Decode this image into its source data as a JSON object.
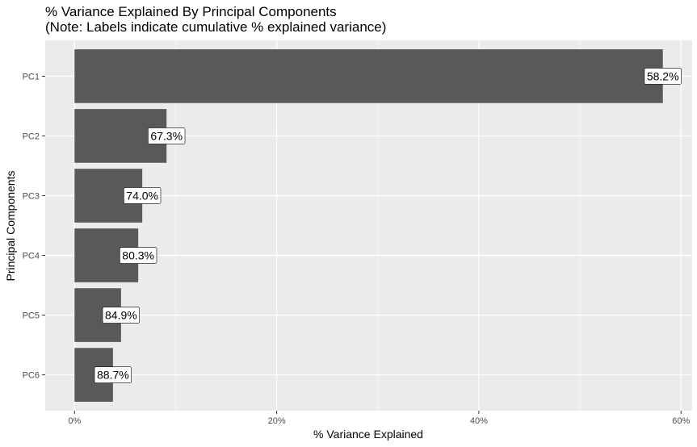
{
  "chart_data": {
    "type": "bar",
    "orientation": "horizontal",
    "title": "% Variance Explained By Principal Components",
    "subtitle": "(Note: Labels indicate cumulative % explained variance)",
    "xlabel": "% Variance Explained",
    "ylabel": "Principal Components",
    "categories": [
      "PC1",
      "PC2",
      "PC3",
      "PC4",
      "PC5",
      "PC6"
    ],
    "values": [
      58.2,
      9.1,
      6.7,
      6.3,
      4.6,
      3.8
    ],
    "data_labels": [
      "58.2%",
      "67.3%",
      "74.0%",
      "80.3%",
      "84.9%",
      "88.7%"
    ],
    "xlim": [
      -2.9,
      61.1
    ],
    "x_ticks": [
      0,
      20,
      40,
      60
    ],
    "x_tick_labels": [
      "0%",
      "20%",
      "40%",
      "60%"
    ],
    "grid": true,
    "colors": {
      "bar": "#595959",
      "panel_background": "#ebebeb",
      "grid": "#ffffff",
      "label_fill": "#ffffff",
      "label_border": "#000000"
    }
  }
}
